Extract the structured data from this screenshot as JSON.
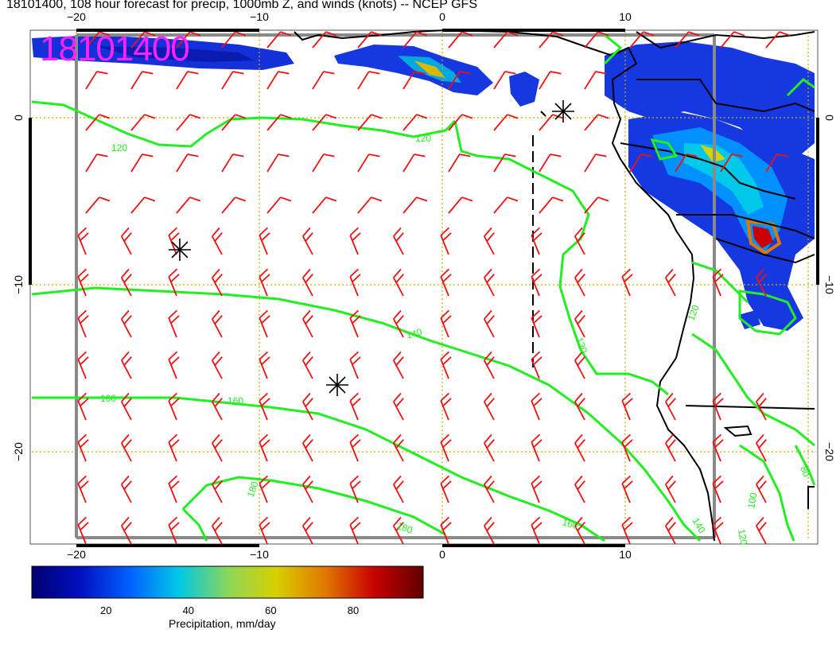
{
  "title": "18101400, 108 hour forecast for precip, 1000mb Z, and winds (knots) -- NCEP GFS",
  "stamp": "18101400",
  "map": {
    "lon_ticks": [
      {
        "value": -20,
        "label": "−20"
      },
      {
        "value": -10,
        "label": "−10"
      },
      {
        "value": 0,
        "label": "0"
      },
      {
        "value": 10,
        "label": "10"
      }
    ],
    "lat_ticks": [
      {
        "value": 0,
        "label": "0"
      },
      {
        "value": -10,
        "label": "−10"
      },
      {
        "value": -20,
        "label": "−20"
      }
    ],
    "contour_labels": [
      "120",
      "120",
      "130",
      "140",
      "160",
      "160",
      "160",
      "180",
      "180",
      "140",
      "120",
      "100",
      "80",
      "120"
    ],
    "highs_marker": "asterisk",
    "colors": {
      "contour": "#22ee22",
      "barb": "#ee1111",
      "grid": "#ccaa00",
      "coast": "#000000"
    }
  },
  "colorbar": {
    "label": "Precipitation, mm/day",
    "ticks": [
      "20",
      "40",
      "60",
      "80"
    ],
    "tick_values": [
      20,
      40,
      60,
      80
    ],
    "min": 2,
    "max": 97,
    "colors": [
      "#000070",
      "#0010c0",
      "#0060ff",
      "#00c8e8",
      "#8ad65a",
      "#d8d000",
      "#e07800",
      "#c80000",
      "#600000"
    ]
  }
}
